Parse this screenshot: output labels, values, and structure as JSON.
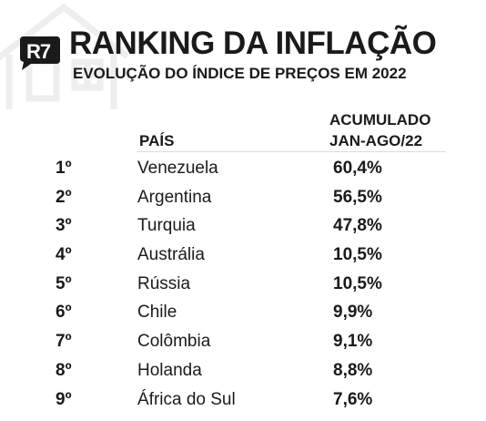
{
  "brand": {
    "logo_text": "R7"
  },
  "header": {
    "title": "RANKING DA INFLAÇÃO",
    "subtitle": "EVOLUÇÃO DO ÍNDICE DE PREÇOS EM 2022"
  },
  "table": {
    "col_country": "PAÍS",
    "col_value_line1": "ACUMULADO",
    "col_value_line2": "JAN-AGO/22",
    "rows": [
      {
        "rank": "1º",
        "country": "Venezuela",
        "value": "60,4%"
      },
      {
        "rank": "2º",
        "country": "Argentina",
        "value": "56,5%"
      },
      {
        "rank": "3º",
        "country": "Turquia",
        "value": "47,8%"
      },
      {
        "rank": "4º",
        "country": "Austrália",
        "value": "10,5%"
      },
      {
        "rank": "5º",
        "country": "Rússia",
        "value": "10,5%"
      },
      {
        "rank": "6º",
        "country": "Chile",
        "value": "9,9%"
      },
      {
        "rank": "7º",
        "country": "Colômbia",
        "value": "9,1%"
      },
      {
        "rank": "8º",
        "country": "Holanda",
        "value": "8,8%"
      },
      {
        "rank": "9º",
        "country": "África do Sul",
        "value": "7,6%"
      }
    ]
  },
  "colors": {
    "text": "#1a1a1a",
    "logo_bg": "#1a1a1a",
    "watermark": "#eeeeee"
  }
}
